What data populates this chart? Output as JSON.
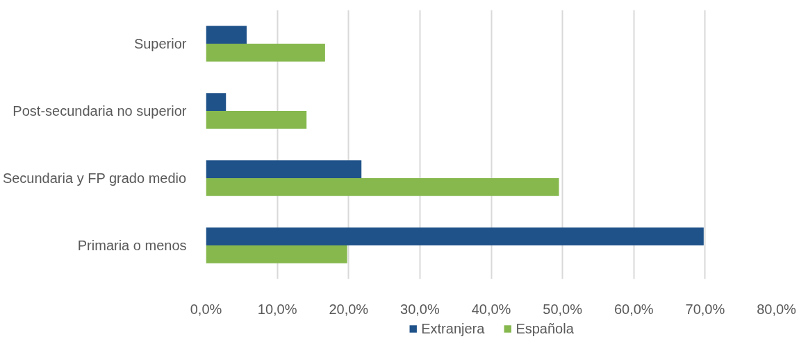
{
  "chart_data": {
    "type": "bar",
    "orientation": "horizontal",
    "categories": [
      "Superior",
      "Post-secundaria no superior",
      "Secundaria y FP grado medio",
      "Primaria o menos"
    ],
    "series": [
      {
        "name": "Extranjera",
        "color": "#1f5289",
        "values": [
          5.7,
          2.8,
          21.8,
          69.8
        ]
      },
      {
        "name": "Española",
        "color": "#86b84e",
        "values": [
          16.7,
          14.1,
          49.5,
          19.8
        ]
      }
    ],
    "xlim": [
      0,
      80
    ],
    "xticks": [
      {
        "value": 0,
        "label": "0,0%"
      },
      {
        "value": 10,
        "label": "10,0%"
      },
      {
        "value": 20,
        "label": "20,0%"
      },
      {
        "value": 30,
        "label": "30,0%"
      },
      {
        "value": 40,
        "label": "40,0%"
      },
      {
        "value": 50,
        "label": "50,0%"
      },
      {
        "value": 60,
        "label": "60,0%"
      },
      {
        "value": 70,
        "label": "70,0%"
      },
      {
        "value": 80,
        "label": "80,0%"
      }
    ],
    "grid": "x",
    "legend": "bottom"
  }
}
